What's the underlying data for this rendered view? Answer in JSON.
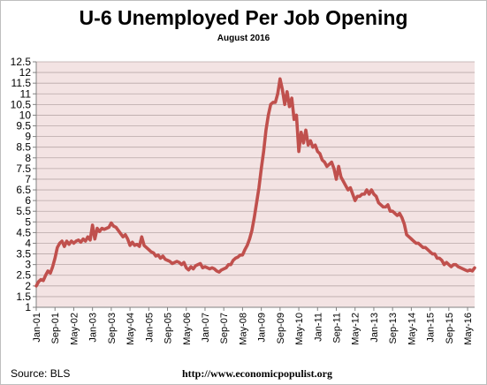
{
  "chart_data": {
    "type": "line",
    "title": "U-6 Unemployed Per Job Opening",
    "subtitle": "August 2016",
    "xlabel": "",
    "ylabel": "",
    "ylim": [
      1,
      12.5
    ],
    "ytick_step": 0.5,
    "yticks": [
      "1",
      "1.5",
      "2",
      "2.5",
      "3",
      "3.5",
      "4",
      "4.5",
      "5",
      "5.5",
      "6",
      "6.5",
      "7",
      "7.5",
      "8",
      "8.5",
      "9",
      "9.5",
      "10",
      "10.5",
      "11",
      "11.5",
      "12",
      "12.5"
    ],
    "xlim": [
      "2001-01",
      "2016-08"
    ],
    "xticks": [
      "Jan-01",
      "Sep-01",
      "May-02",
      "Jan-03",
      "Sep-03",
      "May-04",
      "Jan-05",
      "Sep-05",
      "May-06",
      "Jan-07",
      "Sep-07",
      "May-08",
      "Jan-09",
      "Sep-09",
      "May-10",
      "Jan-11",
      "Sep-11",
      "May-12",
      "Jan-13",
      "Sep-13",
      "May-14",
      "Jan-15",
      "Sep-15",
      "May-16"
    ],
    "grid": true,
    "legend": "none",
    "series": [
      {
        "color": "#c0504d",
        "points": [
          [
            "2001-01",
            2.0
          ],
          [
            "2001-02",
            2.2
          ],
          [
            "2001-03",
            2.3
          ],
          [
            "2001-04",
            2.25
          ],
          [
            "2001-05",
            2.5
          ],
          [
            "2001-06",
            2.7
          ],
          [
            "2001-07",
            2.6
          ],
          [
            "2001-08",
            2.9
          ],
          [
            "2001-09",
            3.3
          ],
          [
            "2001-10",
            3.8
          ],
          [
            "2001-11",
            4.0
          ],
          [
            "2001-12",
            4.1
          ],
          [
            "2002-01",
            3.85
          ],
          [
            "2002-02",
            4.1
          ],
          [
            "2002-03",
            3.95
          ],
          [
            "2002-04",
            4.1
          ],
          [
            "2002-05",
            4.0
          ],
          [
            "2002-06",
            4.1
          ],
          [
            "2002-07",
            4.15
          ],
          [
            "2002-08",
            4.05
          ],
          [
            "2002-09",
            4.2
          ],
          [
            "2002-10",
            4.1
          ],
          [
            "2002-11",
            4.3
          ],
          [
            "2002-12",
            4.15
          ],
          [
            "2003-01",
            4.85
          ],
          [
            "2003-02",
            4.2
          ],
          [
            "2003-03",
            4.7
          ],
          [
            "2003-04",
            4.55
          ],
          [
            "2003-05",
            4.7
          ],
          [
            "2003-06",
            4.65
          ],
          [
            "2003-07",
            4.7
          ],
          [
            "2003-08",
            4.75
          ],
          [
            "2003-09",
            4.95
          ],
          [
            "2003-10",
            4.8
          ],
          [
            "2003-11",
            4.75
          ],
          [
            "2003-12",
            4.6
          ],
          [
            "2004-01",
            4.45
          ],
          [
            "2004-02",
            4.3
          ],
          [
            "2004-03",
            4.4
          ],
          [
            "2004-04",
            4.2
          ],
          [
            "2004-05",
            3.9
          ],
          [
            "2004-06",
            4.05
          ],
          [
            "2004-07",
            3.9
          ],
          [
            "2004-08",
            3.95
          ],
          [
            "2004-09",
            3.85
          ],
          [
            "2004-10",
            4.3
          ],
          [
            "2004-11",
            3.9
          ],
          [
            "2004-12",
            3.8
          ],
          [
            "2005-01",
            3.7
          ],
          [
            "2005-02",
            3.6
          ],
          [
            "2005-03",
            3.55
          ],
          [
            "2005-04",
            3.4
          ],
          [
            "2005-05",
            3.45
          ],
          [
            "2005-06",
            3.3
          ],
          [
            "2005-07",
            3.4
          ],
          [
            "2005-08",
            3.25
          ],
          [
            "2005-09",
            3.2
          ],
          [
            "2005-10",
            3.15
          ],
          [
            "2005-11",
            3.05
          ],
          [
            "2005-12",
            3.1
          ],
          [
            "2006-01",
            3.15
          ],
          [
            "2006-02",
            3.1
          ],
          [
            "2006-03",
            3.0
          ],
          [
            "2006-04",
            3.1
          ],
          [
            "2006-05",
            2.85
          ],
          [
            "2006-06",
            2.75
          ],
          [
            "2006-07",
            2.9
          ],
          [
            "2006-08",
            2.8
          ],
          [
            "2006-09",
            2.95
          ],
          [
            "2006-10",
            3.0
          ],
          [
            "2006-11",
            3.05
          ],
          [
            "2006-12",
            2.85
          ],
          [
            "2007-01",
            2.9
          ],
          [
            "2007-02",
            2.85
          ],
          [
            "2007-03",
            2.8
          ],
          [
            "2007-04",
            2.85
          ],
          [
            "2007-05",
            2.8
          ],
          [
            "2007-06",
            2.7
          ],
          [
            "2007-07",
            2.65
          ],
          [
            "2007-08",
            2.75
          ],
          [
            "2007-09",
            2.8
          ],
          [
            "2007-10",
            2.85
          ],
          [
            "2007-11",
            3.0
          ],
          [
            "2007-12",
            3.0
          ],
          [
            "2008-01",
            3.2
          ],
          [
            "2008-02",
            3.3
          ],
          [
            "2008-03",
            3.35
          ],
          [
            "2008-04",
            3.45
          ],
          [
            "2008-05",
            3.45
          ],
          [
            "2008-06",
            3.7
          ],
          [
            "2008-07",
            3.9
          ],
          [
            "2008-08",
            4.2
          ],
          [
            "2008-09",
            4.6
          ],
          [
            "2008-10",
            5.2
          ],
          [
            "2008-11",
            5.9
          ],
          [
            "2008-12",
            6.6
          ],
          [
            "2009-01",
            7.5
          ],
          [
            "2009-02",
            8.3
          ],
          [
            "2009-03",
            9.3
          ],
          [
            "2009-04",
            10.0
          ],
          [
            "2009-05",
            10.5
          ],
          [
            "2009-06",
            10.6
          ],
          [
            "2009-07",
            10.6
          ],
          [
            "2009-08",
            11.0
          ],
          [
            "2009-09",
            11.7
          ],
          [
            "2009-10",
            11.2
          ],
          [
            "2009-11",
            10.5
          ],
          [
            "2009-12",
            11.1
          ],
          [
            "2010-01",
            10.4
          ],
          [
            "2010-02",
            10.8
          ],
          [
            "2010-03",
            9.8
          ],
          [
            "2010-04",
            10.0
          ],
          [
            "2010-05",
            8.3
          ],
          [
            "2010-06",
            9.2
          ],
          [
            "2010-07",
            8.7
          ],
          [
            "2010-08",
            9.3
          ],
          [
            "2010-09",
            8.6
          ],
          [
            "2010-10",
            8.8
          ],
          [
            "2010-11",
            8.5
          ],
          [
            "2010-12",
            8.6
          ],
          [
            "2011-01",
            8.3
          ],
          [
            "2011-02",
            8.2
          ],
          [
            "2011-03",
            7.9
          ],
          [
            "2011-04",
            7.8
          ],
          [
            "2011-05",
            7.6
          ],
          [
            "2011-06",
            7.7
          ],
          [
            "2011-07",
            7.8
          ],
          [
            "2011-08",
            7.5
          ],
          [
            "2011-09",
            7.0
          ],
          [
            "2011-10",
            7.6
          ],
          [
            "2011-11",
            7.1
          ],
          [
            "2011-12",
            6.9
          ],
          [
            "2012-01",
            6.7
          ],
          [
            "2012-02",
            6.5
          ],
          [
            "2012-03",
            6.6
          ],
          [
            "2012-04",
            6.3
          ],
          [
            "2012-05",
            6.0
          ],
          [
            "2012-06",
            6.2
          ],
          [
            "2012-07",
            6.2
          ],
          [
            "2012-08",
            6.3
          ],
          [
            "2012-09",
            6.3
          ],
          [
            "2012-10",
            6.5
          ],
          [
            "2012-11",
            6.3
          ],
          [
            "2012-12",
            6.5
          ],
          [
            "2013-01",
            6.3
          ],
          [
            "2013-02",
            6.2
          ],
          [
            "2013-03",
            5.9
          ],
          [
            "2013-04",
            5.8
          ],
          [
            "2013-05",
            5.7
          ],
          [
            "2013-06",
            5.7
          ],
          [
            "2013-07",
            5.8
          ],
          [
            "2013-08",
            5.5
          ],
          [
            "2013-09",
            5.5
          ],
          [
            "2013-10",
            5.4
          ],
          [
            "2013-11",
            5.3
          ],
          [
            "2013-12",
            5.4
          ],
          [
            "2014-01",
            5.2
          ],
          [
            "2014-02",
            4.9
          ],
          [
            "2014-03",
            4.4
          ],
          [
            "2014-04",
            4.3
          ],
          [
            "2014-05",
            4.2
          ],
          [
            "2014-06",
            4.1
          ],
          [
            "2014-07",
            4.0
          ],
          [
            "2014-08",
            4.0
          ],
          [
            "2014-09",
            3.9
          ],
          [
            "2014-10",
            3.8
          ],
          [
            "2014-11",
            3.8
          ],
          [
            "2014-12",
            3.7
          ],
          [
            "2015-01",
            3.6
          ],
          [
            "2015-02",
            3.5
          ],
          [
            "2015-03",
            3.5
          ],
          [
            "2015-04",
            3.3
          ],
          [
            "2015-05",
            3.3
          ],
          [
            "2015-06",
            3.2
          ],
          [
            "2015-07",
            3.0
          ],
          [
            "2015-08",
            3.1
          ],
          [
            "2015-09",
            3.0
          ],
          [
            "2015-10",
            2.9
          ],
          [
            "2015-11",
            3.0
          ],
          [
            "2015-12",
            3.0
          ],
          [
            "2016-01",
            2.9
          ],
          [
            "2016-02",
            2.85
          ],
          [
            "2016-03",
            2.8
          ],
          [
            "2016-04",
            2.75
          ],
          [
            "2016-05",
            2.7
          ],
          [
            "2016-06",
            2.75
          ],
          [
            "2016-07",
            2.7
          ],
          [
            "2016-08",
            2.85
          ]
        ]
      }
    ]
  },
  "footer": {
    "source": "Source:  BLS",
    "url": "http://www.economicpopulist.org"
  },
  "colors": {
    "plot_background": "#f3e3e3",
    "grid": "#b8a8a8",
    "line": "#c0504d"
  }
}
